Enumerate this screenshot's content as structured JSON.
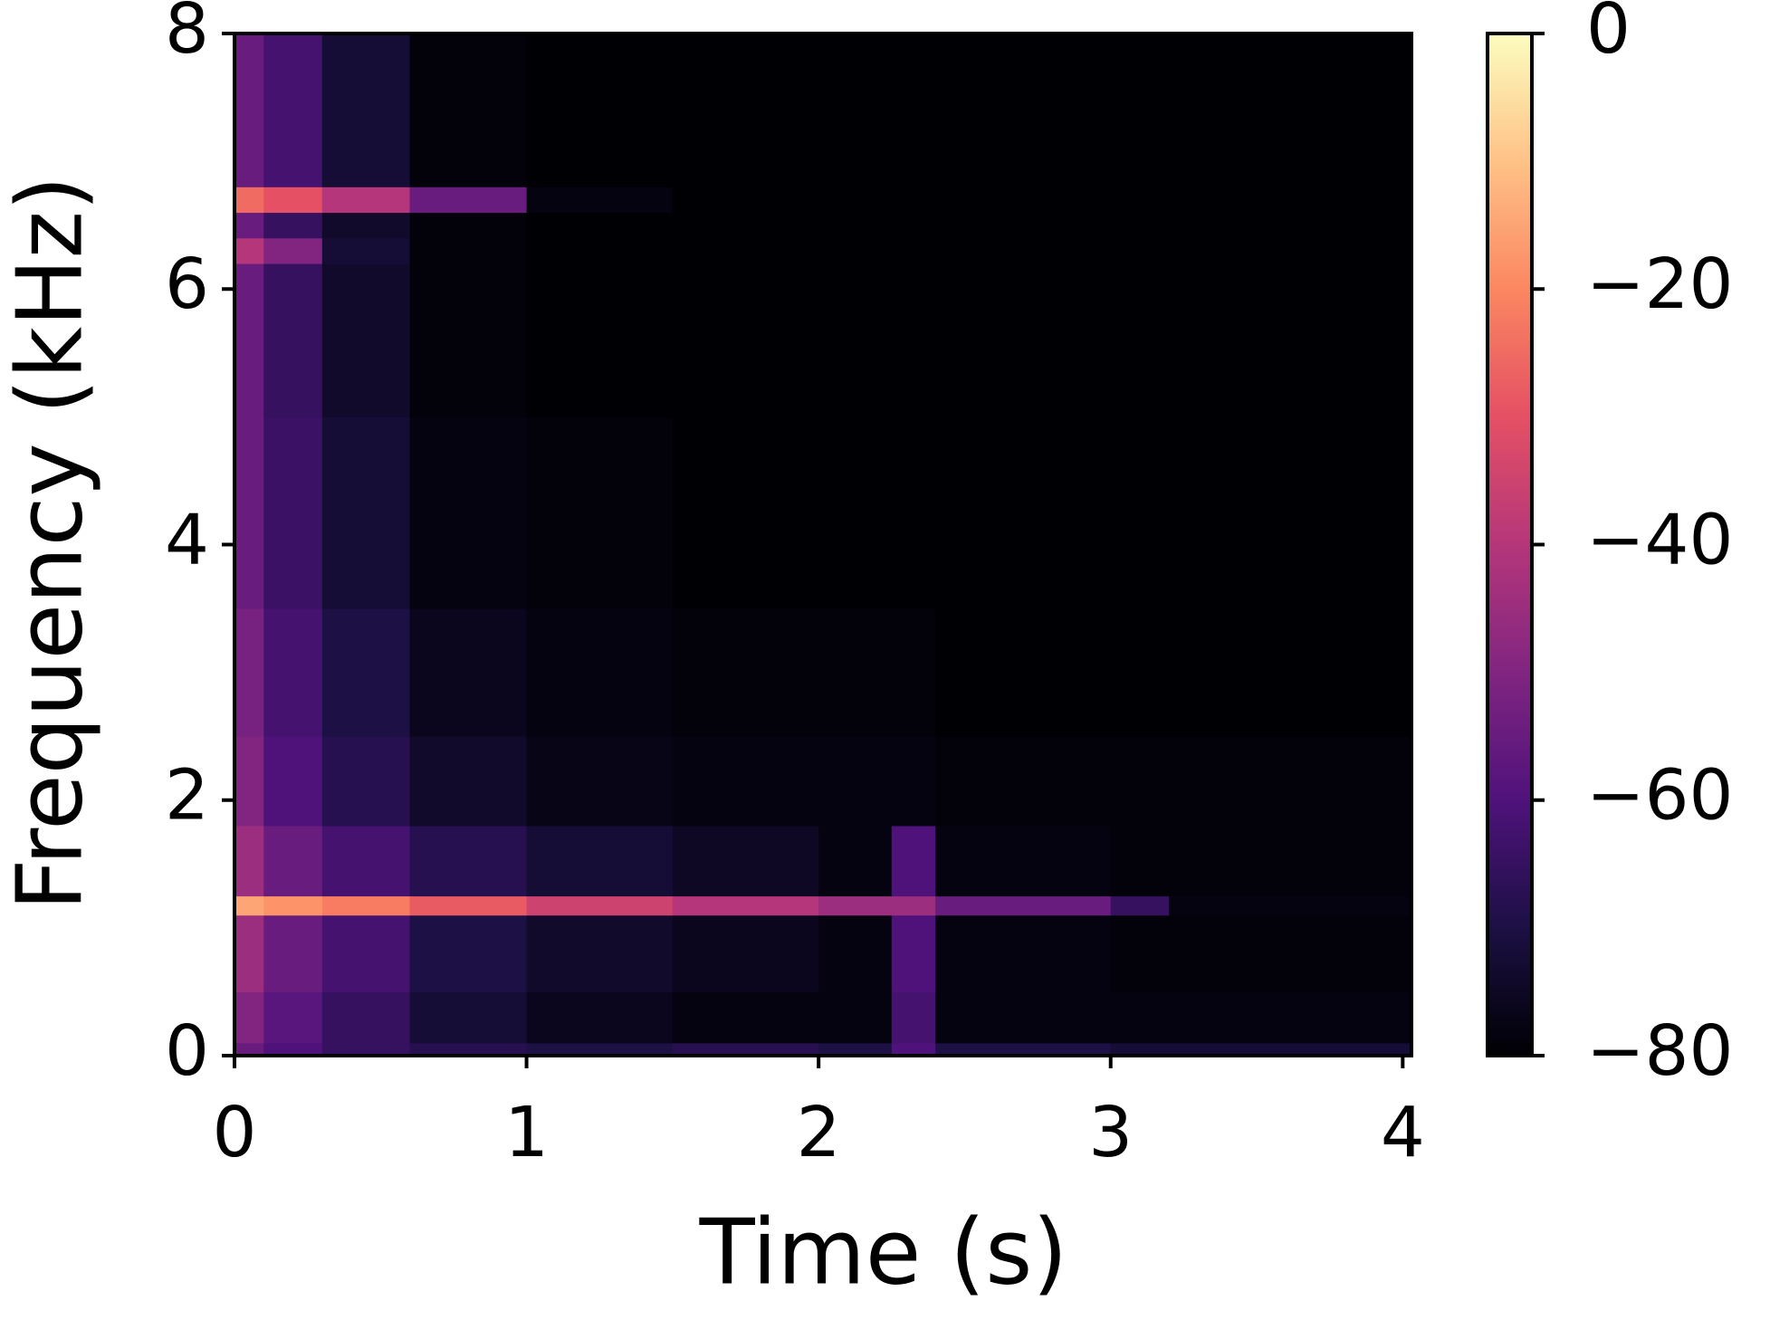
{
  "chart_data": {
    "type": "spectrogram",
    "xlabel": "Time (s)",
    "ylabel": "Frequency (kHz)",
    "xlim": [
      0,
      4.03
    ],
    "xticks": [
      0,
      1,
      2,
      3,
      4
    ],
    "ylim": [
      0,
      8
    ],
    "yticks": [
      0,
      2,
      4,
      6,
      8
    ],
    "xbins": [
      0,
      0.1,
      0.3,
      0.6,
      1,
      1.5,
      2,
      2.25,
      2.4,
      3,
      3.2,
      4.03
    ],
    "ybins": [
      0,
      0.1,
      0.5,
      1.1,
      1.25,
      1.8,
      2.5,
      3.5,
      5,
      6.2,
      6.4,
      6.6,
      6.8,
      8
    ],
    "values": [
      [
        -55,
        -60,
        -65,
        -68,
        -70,
        -68,
        -70,
        -60,
        -70,
        -72,
        -72
      ],
      [
        -50,
        -58,
        -65,
        -72,
        -76,
        -78,
        -78,
        -62,
        -78,
        -78,
        -78
      ],
      [
        -45,
        -55,
        -62,
        -70,
        -74,
        -76,
        -78,
        -60,
        -78,
        -79,
        -79
      ],
      [
        -15,
        -18,
        -22,
        -28,
        -35,
        -40,
        -45,
        -45,
        -55,
        -65,
        -78
      ],
      [
        -45,
        -55,
        -62,
        -68,
        -72,
        -75,
        -78,
        -60,
        -78,
        -79,
        -79
      ],
      [
        -50,
        -60,
        -68,
        -74,
        -77,
        -78,
        -78,
        -78,
        -79,
        -79,
        -79
      ],
      [
        -52,
        -62,
        -70,
        -76,
        -78,
        -79,
        -79,
        -79,
        -80,
        -80,
        -80
      ],
      [
        -55,
        -64,
        -72,
        -78,
        -79,
        -80,
        -80,
        -80,
        -80,
        -80,
        -80
      ],
      [
        -55,
        -65,
        -74,
        -79,
        -80,
        -80,
        -80,
        -80,
        -80,
        -80,
        -80
      ],
      [
        -40,
        -50,
        -72,
        -79,
        -80,
        -80,
        -80,
        -80,
        -80,
        -80,
        -80
      ],
      [
        -55,
        -65,
        -74,
        -79,
        -80,
        -80,
        -80,
        -80,
        -80,
        -80,
        -80
      ],
      [
        -25,
        -30,
        -40,
        -55,
        -78,
        -80,
        -80,
        -80,
        -80,
        -80,
        -80
      ],
      [
        -55,
        -62,
        -72,
        -79,
        -80,
        -80,
        -80,
        -80,
        -80,
        -80,
        -80
      ]
    ],
    "colormap": "magma",
    "clim": [
      -80,
      0
    ],
    "cticks": [
      {
        "value": -80,
        "label": "−80"
      },
      {
        "value": -60,
        "label": "−60"
      },
      {
        "value": -40,
        "label": "−40"
      },
      {
        "value": -20,
        "label": "−20"
      },
      0
    ]
  }
}
